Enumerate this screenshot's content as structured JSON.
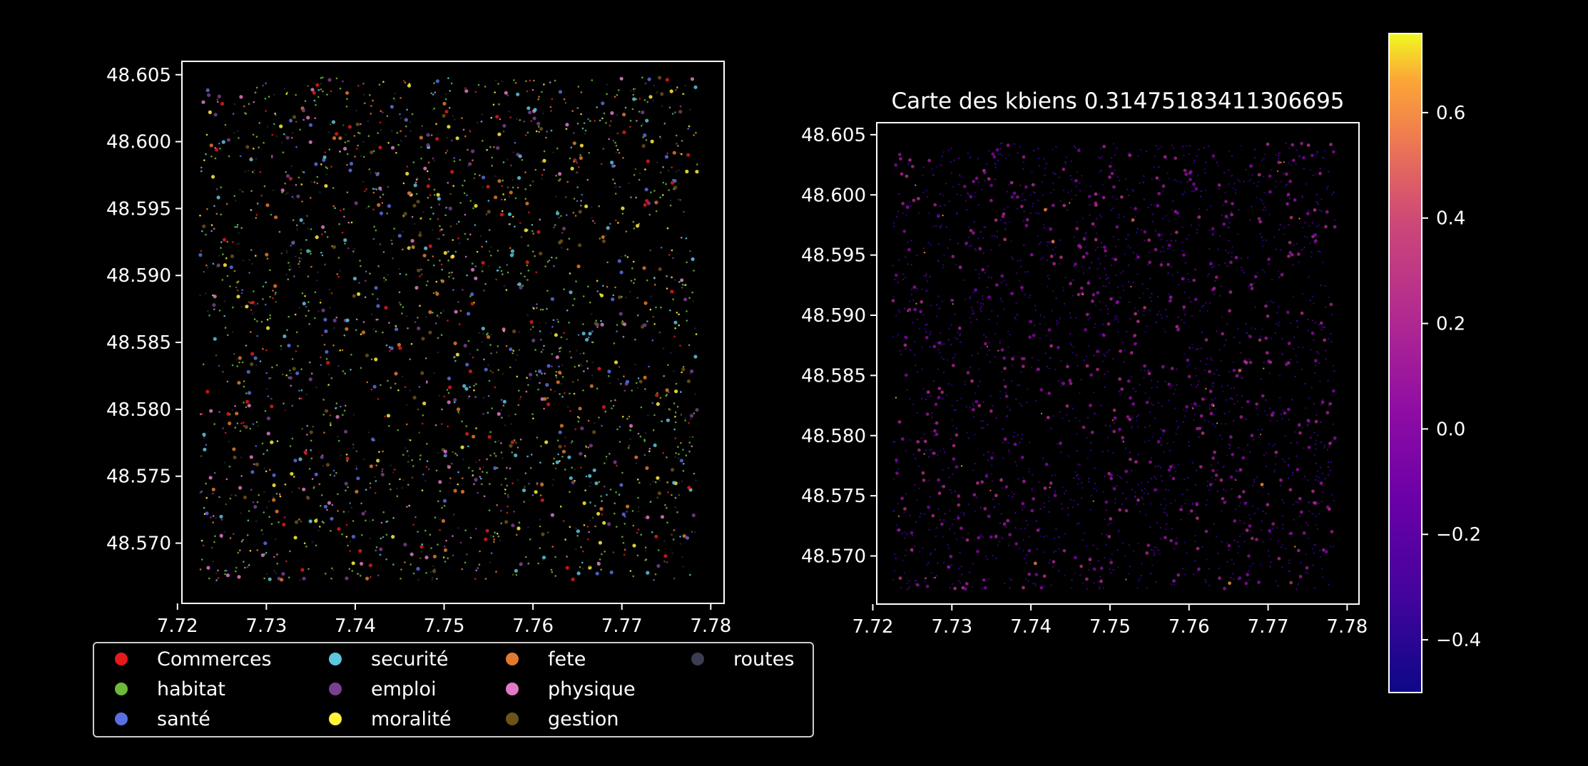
{
  "colors": {
    "background": "#000000",
    "axes": "#ffffff",
    "categories": {
      "Commerces": "#e41a1c",
      "habitat": "#6fb93a",
      "santé": "#5b6ee1",
      "securité": "#5fc6e0",
      "emploi": "#7a3f8f",
      "moralité": "#fff23a",
      "fete": "#e07a2f",
      "physique": "#e07ac6",
      "gestion": "#6b5418",
      "routes": "#3b3d52"
    }
  },
  "chart_data": [
    {
      "type": "scatter",
      "title": "",
      "xlabel": "",
      "ylabel": "",
      "xlim": [
        7.7205,
        7.7815
      ],
      "ylim": [
        48.5655,
        48.606
      ],
      "xticks": [
        "7.72",
        "7.73",
        "7.74",
        "7.75",
        "7.76",
        "7.77",
        "7.78"
      ],
      "yticks": [
        "48.570",
        "48.575",
        "48.580",
        "48.585",
        "48.590",
        "48.595",
        "48.600",
        "48.605"
      ],
      "grid": false,
      "legend_position": "below",
      "series": [
        {
          "name": "Commerces",
          "icon": "red-dot"
        },
        {
          "name": "habitat",
          "icon": "green-dot"
        },
        {
          "name": "santé",
          "icon": "blue-dot"
        },
        {
          "name": "securité",
          "icon": "cyan-dot"
        },
        {
          "name": "emploi",
          "icon": "purple-dot"
        },
        {
          "name": "moralité",
          "icon": "yellow-dot"
        },
        {
          "name": "fete",
          "icon": "orange-dot"
        },
        {
          "name": "physique",
          "icon": "pink-dot"
        },
        {
          "name": "gestion",
          "icon": "brown-dot"
        },
        {
          "name": "routes",
          "icon": "slate-dot"
        }
      ],
      "data_extent": {
        "x": [
          7.7225,
          7.7785
        ],
        "y": [
          48.5672,
          48.6048
        ]
      }
    },
    {
      "type": "scatter",
      "title": "Carte des kbiens 0.31475183411306695",
      "xlabel": "",
      "ylabel": "",
      "xlim": [
        7.7205,
        7.7815
      ],
      "ylim": [
        48.566,
        48.606
      ],
      "xticks": [
        "7.72",
        "7.73",
        "7.74",
        "7.75",
        "7.76",
        "7.77",
        "7.78"
      ],
      "yticks": [
        "48.570",
        "48.575",
        "48.580",
        "48.585",
        "48.590",
        "48.595",
        "48.600",
        "48.605"
      ],
      "grid": false,
      "colormap": "plasma",
      "colorbar": {
        "range": [
          -0.5,
          0.75
        ],
        "ticks": [
          "−0.4",
          "−0.2",
          "0.0",
          "0.2",
          "0.4",
          "0.6"
        ],
        "tick_values": [
          -0.4,
          -0.2,
          0.0,
          0.2,
          0.4,
          0.6
        ]
      },
      "data_extent": {
        "x": [
          7.7225,
          7.7785
        ],
        "y": [
          48.5672,
          48.6043
        ]
      }
    }
  ]
}
